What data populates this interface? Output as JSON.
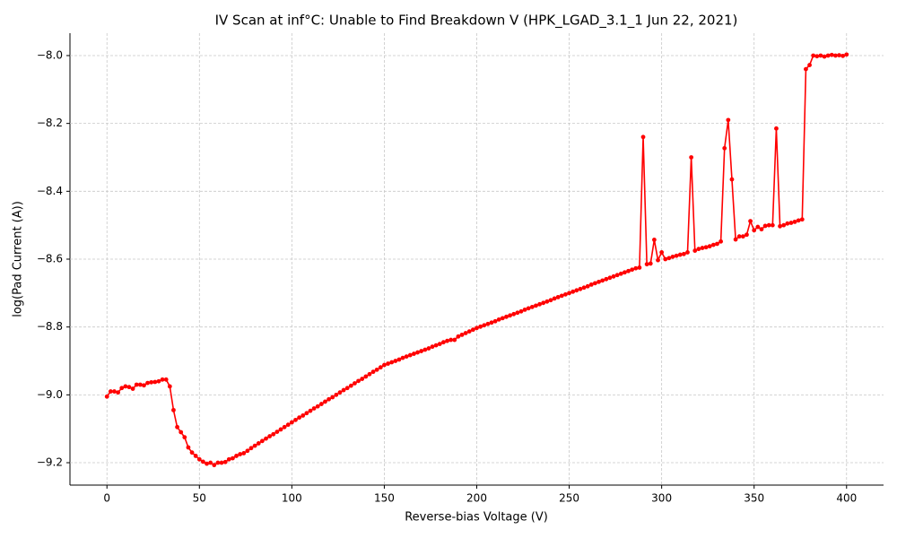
{
  "chart_data": {
    "type": "line",
    "title": "IV Scan at inf°C: Unable to Find Breakdown V (HPK_LGAD_3.1_1 Jun 22, 2021)",
    "x_label": "Reverse-bias Voltage (V)",
    "y_label": "log(Pad Current (A))",
    "color": "#ff0000",
    "markers": true,
    "grid": true,
    "x": [
      0,
      2,
      4,
      6,
      8,
      10,
      12,
      14,
      16,
      18,
      20,
      22,
      24,
      26,
      28,
      30,
      32,
      34,
      36,
      38,
      40,
      42,
      44,
      46,
      48,
      50,
      52,
      54,
      56,
      58,
      60,
      62,
      64,
      66,
      68,
      70,
      72,
      74,
      76,
      78,
      80,
      82,
      84,
      86,
      88,
      90,
      92,
      94,
      96,
      98,
      100,
      102,
      104,
      106,
      108,
      110,
      112,
      114,
      116,
      118,
      120,
      122,
      124,
      126,
      128,
      130,
      132,
      134,
      136,
      138,
      140,
      142,
      144,
      146,
      148,
      150,
      152,
      154,
      156,
      158,
      160,
      162,
      164,
      166,
      168,
      170,
      172,
      174,
      176,
      178,
      180,
      182,
      184,
      186,
      188,
      190,
      192,
      194,
      196,
      198,
      200,
      202,
      204,
      206,
      208,
      210,
      212,
      214,
      216,
      218,
      220,
      222,
      224,
      226,
      228,
      230,
      232,
      234,
      236,
      238,
      240,
      242,
      244,
      246,
      248,
      250,
      252,
      254,
      256,
      258,
      260,
      262,
      264,
      266,
      268,
      270,
      272,
      274,
      276,
      278,
      280,
      282,
      284,
      286,
      288,
      290,
      292,
      294,
      296,
      298,
      300,
      302,
      304,
      306,
      308,
      310,
      312,
      314,
      316,
      318,
      320,
      322,
      324,
      326,
      328,
      330,
      332,
      334,
      336,
      338,
      340,
      342,
      344,
      346,
      348,
      350,
      352,
      354,
      356,
      358,
      360,
      362,
      364,
      366,
      368,
      370,
      372,
      374,
      376,
      378,
      380,
      382,
      384,
      386,
      388,
      390,
      392,
      394,
      396,
      398,
      400
    ],
    "values": [
      -9.005,
      -8.99,
      -8.99,
      -8.993,
      -8.98,
      -8.975,
      -8.977,
      -8.982,
      -8.97,
      -8.97,
      -8.972,
      -8.965,
      -8.963,
      -8.962,
      -8.96,
      -8.955,
      -8.955,
      -8.975,
      -9.045,
      -9.095,
      -9.11,
      -9.125,
      -9.155,
      -9.17,
      -9.18,
      -9.19,
      -9.197,
      -9.203,
      -9.2,
      -9.207,
      -9.2,
      -9.2,
      -9.198,
      -9.19,
      -9.187,
      -9.18,
      -9.175,
      -9.172,
      -9.165,
      -9.157,
      -9.15,
      -9.143,
      -9.136,
      -9.129,
      -9.122,
      -9.116,
      -9.109,
      -9.102,
      -9.095,
      -9.088,
      -9.081,
      -9.074,
      -9.067,
      -9.061,
      -9.054,
      -9.047,
      -9.04,
      -9.034,
      -9.027,
      -9.02,
      -9.013,
      -9.007,
      -9.0,
      -8.993,
      -8.986,
      -8.98,
      -8.973,
      -8.966,
      -8.959,
      -8.953,
      -8.946,
      -8.939,
      -8.932,
      -8.926,
      -8.919,
      -8.912,
      -8.908,
      -8.904,
      -8.9,
      -8.896,
      -8.891,
      -8.887,
      -8.883,
      -8.879,
      -8.875,
      -8.871,
      -8.867,
      -8.863,
      -8.858,
      -8.854,
      -8.85,
      -8.845,
      -8.841,
      -8.838,
      -8.838,
      -8.828,
      -8.823,
      -8.818,
      -8.813,
      -8.808,
      -8.803,
      -8.799,
      -8.795,
      -8.791,
      -8.787,
      -8.783,
      -8.778,
      -8.774,
      -8.77,
      -8.766,
      -8.762,
      -8.758,
      -8.754,
      -8.749,
      -8.745,
      -8.741,
      -8.737,
      -8.733,
      -8.729,
      -8.725,
      -8.721,
      -8.716,
      -8.712,
      -8.708,
      -8.704,
      -8.7,
      -8.696,
      -8.692,
      -8.688,
      -8.684,
      -8.68,
      -8.675,
      -8.671,
      -8.667,
      -8.663,
      -8.659,
      -8.655,
      -8.651,
      -8.647,
      -8.643,
      -8.639,
      -8.635,
      -8.631,
      -8.627,
      -8.625,
      -8.24,
      -8.615,
      -8.613,
      -8.543,
      -8.603,
      -8.58,
      -8.6,
      -8.597,
      -8.593,
      -8.59,
      -8.587,
      -8.585,
      -8.58,
      -8.3,
      -8.575,
      -8.57,
      -8.567,
      -8.565,
      -8.562,
      -8.558,
      -8.555,
      -8.548,
      -8.273,
      -8.19,
      -8.365,
      -8.542,
      -8.533,
      -8.533,
      -8.528,
      -8.488,
      -8.515,
      -8.505,
      -8.512,
      -8.502,
      -8.5,
      -8.5,
      -8.215,
      -8.503,
      -8.5,
      -8.495,
      -8.493,
      -8.49,
      -8.486,
      -8.483,
      -8.04,
      -8.028,
      -8.0,
      -8.002,
      -8.0,
      -8.003,
      -8.0,
      -7.998,
      -8.0,
      -7.999,
      -8.001,
      -7.997
    ],
    "xlim": [
      -20,
      420
    ],
    "ylim": [
      -9.266,
      -7.934
    ],
    "xticks": [
      0,
      50,
      100,
      150,
      200,
      250,
      300,
      350,
      400
    ],
    "yticks": [
      {
        "value": -9.2,
        "label": "−9.2"
      },
      {
        "value": -9.0,
        "label": "−9.0"
      },
      {
        "value": -8.8,
        "label": "−8.8"
      },
      {
        "value": -8.6,
        "label": "−8.6"
      },
      {
        "value": -8.4,
        "label": "−8.4"
      },
      {
        "value": -8.2,
        "label": "−8.2"
      },
      {
        "value": -8.0,
        "label": "−8.0"
      }
    ]
  }
}
